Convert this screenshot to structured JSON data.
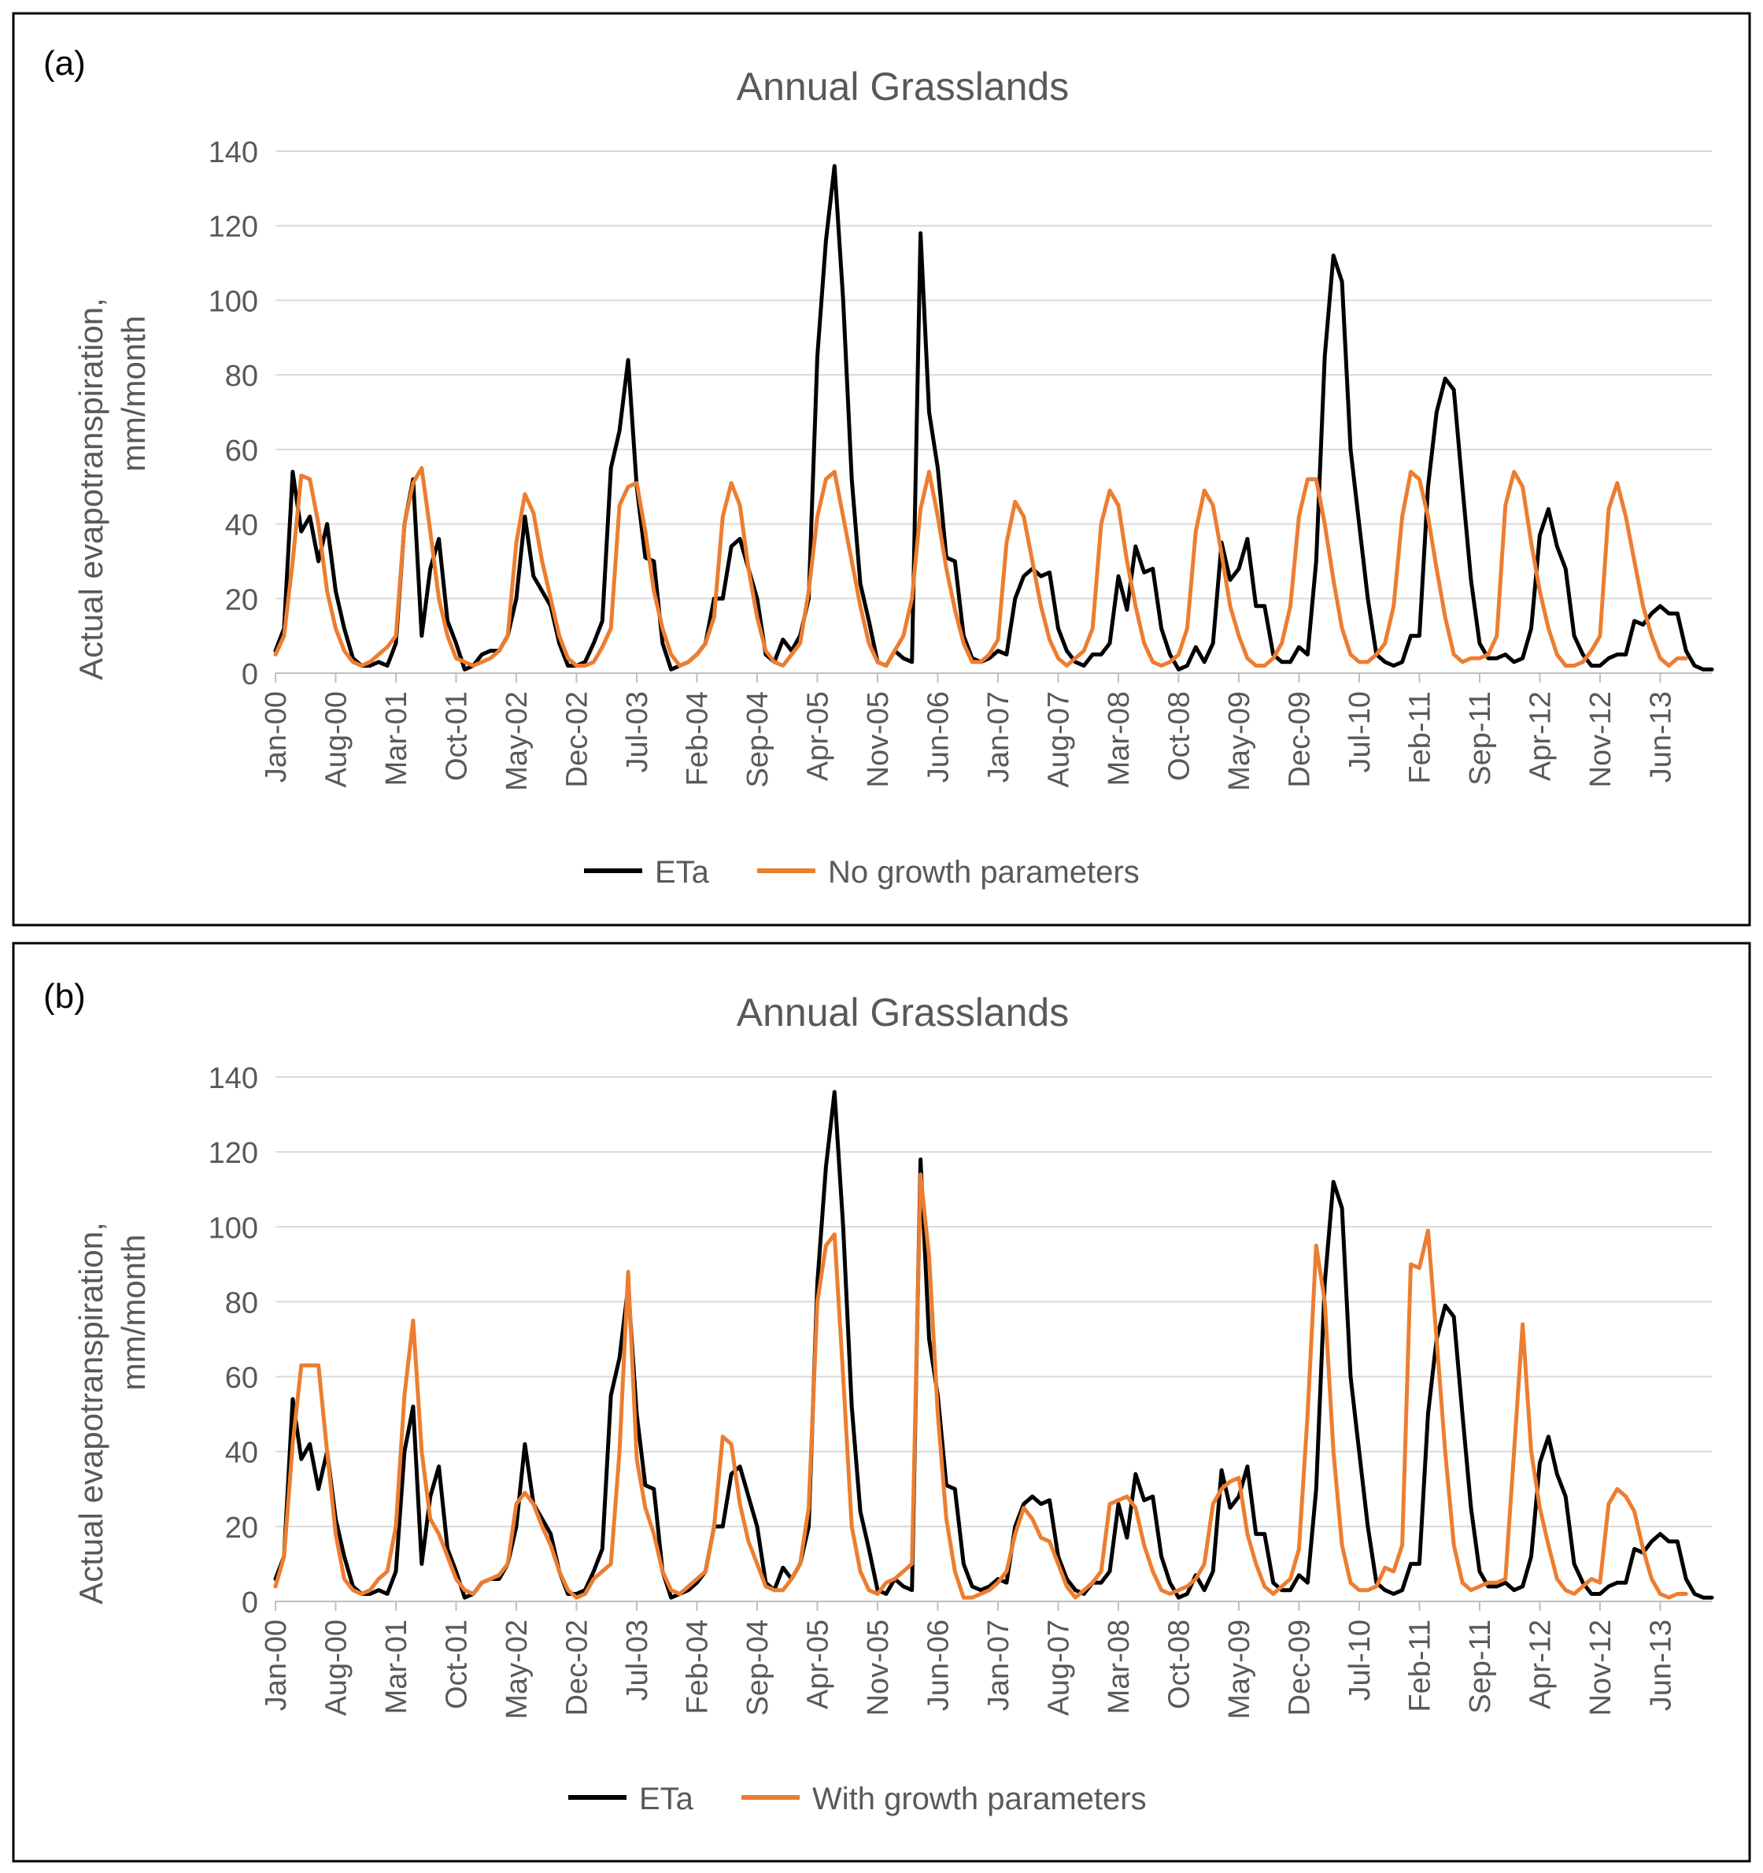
{
  "figure": {
    "colors": {
      "eta": "#000000",
      "model": "#ED7D31",
      "grid": "#D9D9D9",
      "text": "#595959",
      "frame": "#000000"
    }
  },
  "panels": [
    {
      "tag": "(a)",
      "chart_data": {
        "type": "line",
        "title": "Annual Grasslands",
        "xlabel": "",
        "ylabel_lines": [
          "Actual evapotranspiration,",
          "mm/month"
        ],
        "ylim": [
          0,
          140
        ],
        "yticks": [
          0,
          20,
          40,
          60,
          80,
          100,
          120,
          140
        ],
        "xtick_labels": [
          "Jan-00",
          "Aug-00",
          "Mar-01",
          "Oct-01",
          "May-02",
          "Dec-02",
          "Jul-03",
          "Feb-04",
          "Sep-04",
          "Apr-05",
          "Nov-05",
          "Jun-06",
          "Jan-07",
          "Aug-07",
          "Mar-08",
          "Oct-08",
          "May-09",
          "Dec-09",
          "Jul-10",
          "Feb-11",
          "Sep-11",
          "Apr-12",
          "Nov-12",
          "Jun-13"
        ],
        "x_start": "Jan-2000",
        "x_step": "1 month",
        "legend": {
          "position": "bottom-center",
          "entries": [
            "ETa",
            "No growth parameters"
          ]
        },
        "series": [
          {
            "name": "ETa",
            "values": [
              6,
              12,
              54,
              38,
              42,
              30,
              40,
              22,
              12,
              4,
              2,
              2,
              3,
              2,
              8,
              40,
              52,
              10,
              28,
              36,
              14,
              8,
              1,
              2,
              5,
              6,
              6,
              10,
              20,
              42,
              26,
              22,
              18,
              8,
              2,
              2,
              3,
              8,
              14,
              55,
              65,
              84,
              50,
              31,
              30,
              8,
              1,
              2,
              3,
              5,
              8,
              20,
              20,
              34,
              36,
              28,
              20,
              5,
              3,
              9,
              6,
              10,
              20,
              85,
              116,
              136,
              100,
              52,
              24,
              14,
              3,
              2,
              6,
              4,
              3,
              118,
              70,
              55,
              31,
              30,
              10,
              4,
              3,
              4,
              6,
              5,
              20,
              26,
              28,
              26,
              27,
              12,
              6,
              3,
              2,
              5,
              5,
              8,
              26,
              17,
              34,
              27,
              28,
              12,
              5,
              1,
              2,
              7,
              3,
              8,
              35,
              25,
              28,
              36,
              18,
              18,
              5,
              3,
              3,
              7,
              5,
              30,
              85,
              112,
              105,
              60,
              40,
              20,
              5,
              3,
              2,
              3,
              10,
              10,
              50,
              70,
              79,
              76,
              50,
              25,
              8,
              4,
              4,
              5,
              3,
              4,
              12,
              37,
              44,
              34,
              28,
              10,
              5,
              2,
              2,
              4,
              5,
              5,
              14,
              13,
              16,
              18,
              16,
              16,
              6,
              2,
              1,
              1
            ]
          },
          {
            "name": "No growth parameters",
            "values": [
              5,
              10,
              30,
              53,
              52,
              40,
              22,
              12,
              6,
              3,
              2,
              3,
              5,
              7,
              10,
              40,
              51,
              55,
              38,
              20,
              10,
              4,
              3,
              2,
              3,
              4,
              6,
              10,
              35,
              48,
              43,
              30,
              20,
              10,
              4,
              2,
              2,
              3,
              7,
              12,
              45,
              50,
              51,
              38,
              22,
              12,
              5,
              2,
              3,
              5,
              8,
              15,
              42,
              51,
              45,
              28,
              15,
              6,
              3,
              2,
              5,
              8,
              22,
              42,
              52,
              54,
              42,
              30,
              18,
              8,
              3,
              2,
              6,
              10,
              20,
              44,
              54,
              42,
              28,
              17,
              8,
              3,
              3,
              5,
              9,
              35,
              46,
              42,
              30,
              18,
              9,
              4,
              2,
              4,
              6,
              12,
              40,
              49,
              45,
              30,
              18,
              8,
              3,
              2,
              3,
              5,
              12,
              38,
              49,
              45,
              32,
              18,
              10,
              4,
              2,
              2,
              4,
              8,
              18,
              42,
              52,
              52,
              40,
              25,
              12,
              5,
              3,
              3,
              5,
              8,
              18,
              42,
              54,
              52,
              42,
              28,
              15,
              5,
              3,
              4,
              4,
              5,
              10,
              45,
              54,
              50,
              35,
              22,
              12,
              5,
              2,
              2,
              3,
              6,
              10,
              44,
              51,
              42,
              30,
              18,
              10,
              4,
              2,
              4,
              4
            ]
          }
        ]
      }
    },
    {
      "tag": "(b)",
      "chart_data": {
        "type": "line",
        "title": "Annual Grasslands",
        "xlabel": "",
        "ylabel_lines": [
          "Actual evapotranspiration,",
          "mm/month"
        ],
        "ylim": [
          0,
          140
        ],
        "yticks": [
          0,
          20,
          40,
          60,
          80,
          100,
          120,
          140
        ],
        "xtick_labels": [
          "Jan-00",
          "Aug-00",
          "Mar-01",
          "Oct-01",
          "May-02",
          "Dec-02",
          "Jul-03",
          "Feb-04",
          "Sep-04",
          "Apr-05",
          "Nov-05",
          "Jun-06",
          "Jan-07",
          "Aug-07",
          "Mar-08",
          "Oct-08",
          "May-09",
          "Dec-09",
          "Jul-10",
          "Feb-11",
          "Sep-11",
          "Apr-12",
          "Nov-12",
          "Jun-13"
        ],
        "x_start": "Jan-2000",
        "x_step": "1 month",
        "legend": {
          "position": "bottom-center",
          "entries": [
            "ETa",
            "With growth parameters"
          ]
        },
        "series": [
          {
            "name": "ETa",
            "values": [
              6,
              12,
              54,
              38,
              42,
              30,
              40,
              22,
              12,
              4,
              2,
              2,
              3,
              2,
              8,
              40,
              52,
              10,
              28,
              36,
              14,
              8,
              1,
              2,
              5,
              6,
              6,
              10,
              20,
              42,
              26,
              22,
              18,
              8,
              2,
              2,
              3,
              8,
              14,
              55,
              65,
              84,
              50,
              31,
              30,
              8,
              1,
              2,
              3,
              5,
              8,
              20,
              20,
              34,
              36,
              28,
              20,
              5,
              3,
              9,
              6,
              10,
              20,
              85,
              116,
              136,
              100,
              52,
              24,
              14,
              3,
              2,
              6,
              4,
              3,
              118,
              70,
              55,
              31,
              30,
              10,
              4,
              3,
              4,
              6,
              5,
              20,
              26,
              28,
              26,
              27,
              12,
              6,
              3,
              2,
              5,
              5,
              8,
              26,
              17,
              34,
              27,
              28,
              12,
              5,
              1,
              2,
              7,
              3,
              8,
              35,
              25,
              28,
              36,
              18,
              18,
              5,
              3,
              3,
              7,
              5,
              30,
              85,
              112,
              105,
              60,
              40,
              20,
              5,
              3,
              2,
              3,
              10,
              10,
              50,
              70,
              79,
              76,
              50,
              25,
              8,
              4,
              4,
              5,
              3,
              4,
              12,
              37,
              44,
              34,
              28,
              10,
              5,
              2,
              2,
              4,
              5,
              5,
              14,
              13,
              16,
              18,
              16,
              16,
              6,
              2,
              1,
              1
            ]
          },
          {
            "name": "With growth parameters",
            "values": [
              4,
              12,
              42,
              63,
              63,
              63,
              40,
              18,
              6,
              3,
              2,
              3,
              6,
              8,
              20,
              55,
              75,
              40,
              22,
              18,
              12,
              6,
              3,
              2,
              5,
              6,
              7,
              10,
              26,
              29,
              26,
              20,
              15,
              8,
              3,
              1,
              2,
              6,
              8,
              10,
              40,
              88,
              38,
              25,
              18,
              8,
              3,
              2,
              4,
              6,
              8,
              20,
              44,
              42,
              26,
              16,
              10,
              4,
              3,
              3,
              6,
              10,
              25,
              80,
              95,
              98,
              60,
              20,
              8,
              3,
              2,
              5,
              6,
              8,
              10,
              114,
              92,
              50,
              22,
              8,
              1,
              1,
              2,
              3,
              5,
              8,
              18,
              25,
              22,
              17,
              16,
              10,
              4,
              1,
              3,
              5,
              8,
              26,
              27,
              28,
              25,
              15,
              8,
              3,
              2,
              3,
              4,
              6,
              10,
              26,
              30,
              32,
              33,
              18,
              10,
              4,
              2,
              4,
              6,
              14,
              50,
              95,
              80,
              40,
              15,
              5,
              3,
              3,
              4,
              9,
              8,
              15,
              90,
              89,
              99,
              70,
              40,
              15,
              5,
              3,
              4,
              5,
              5,
              6,
              40,
              74,
              40,
              25,
              15,
              6,
              3,
              2,
              4,
              6,
              5,
              26,
              30,
              28,
              24,
              14,
              6,
              2,
              1,
              2,
              2
            ]
          }
        ]
      }
    }
  ]
}
